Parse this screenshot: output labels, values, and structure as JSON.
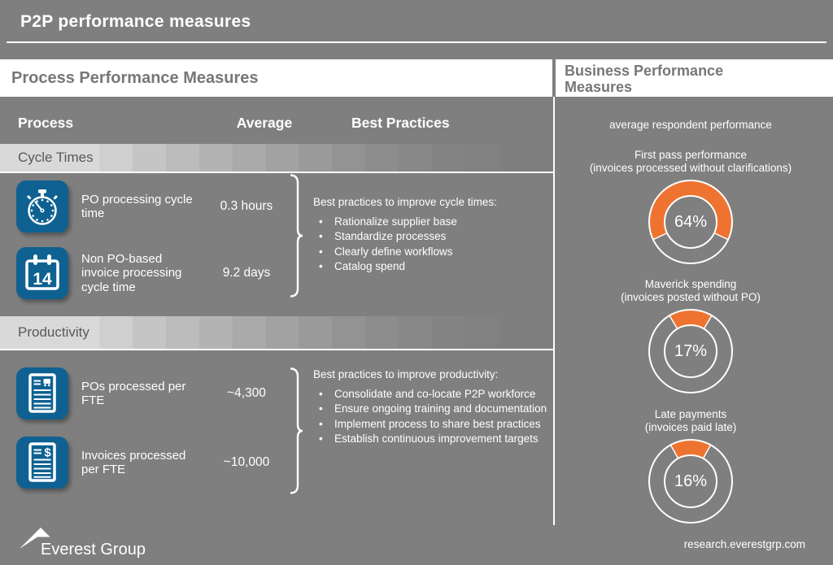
{
  "title": "P2P performance measures",
  "left_panel": {
    "heading": "Process Performance Measures",
    "columns": {
      "process": "Process",
      "average": "Average",
      "best_practices": "Best Practices"
    },
    "sections": [
      {
        "name": "Cycle Times",
        "rows": [
          {
            "icon": "stopwatch-icon",
            "label": "PO processing cycle time",
            "value": "0.3 hours"
          },
          {
            "icon": "calendar-icon",
            "icon_text": "14",
            "label": "Non PO-based invoice processing cycle time",
            "value": "9.2 days"
          }
        ],
        "best_practices_intro": "Best practices to improve cycle times:",
        "best_practices": [
          "Rationalize supplier base",
          "Standardize processes",
          "Clearly define workflows",
          "Catalog spend"
        ]
      },
      {
        "name": "Productivity",
        "rows": [
          {
            "icon": "po-document-icon",
            "label": "POs processed per FTE",
            "value": "~4,300"
          },
          {
            "icon": "invoice-document-icon",
            "icon_text": "$",
            "label": "Invoices processed per FTE",
            "value": "~10,000"
          }
        ],
        "best_practices_intro": "Best practices to improve productivity:",
        "best_practices": [
          "Consolidate and co-locate P2P workforce",
          "Ensure ongoing training and documentation",
          "Implement process to share best practices",
          "Establish continuous improvement targets"
        ]
      }
    ]
  },
  "right_panel": {
    "heading": "Business Performance Measures",
    "subheading": "average respondent performance"
  },
  "chart_data": [
    {
      "type": "donut",
      "title": "First pass performance",
      "subtitle": "(invoices processed without clarifications)",
      "value": 64,
      "label": "64%",
      "color": "#EF7330",
      "remainder_color": "#7F7F7F"
    },
    {
      "type": "donut",
      "title": "Maverick spending",
      "subtitle": "(invoices posted without PO)",
      "value": 17,
      "label": "17%",
      "color": "#EF7330",
      "remainder_color": "#7F7F7F"
    },
    {
      "type": "donut",
      "title": "Late payments",
      "subtitle": "(invoices paid late)",
      "value": 16,
      "label": "16%",
      "color": "#EF7330",
      "remainder_color": "#7F7F7F"
    }
  ],
  "footer": {
    "logo_text": "Everest Group",
    "website": "research.everestgrp.com"
  },
  "colors": {
    "background": "#7F7F7F",
    "accent_orange": "#EF7330",
    "icon_blue": "#0E6191",
    "band_text": "#595959"
  }
}
